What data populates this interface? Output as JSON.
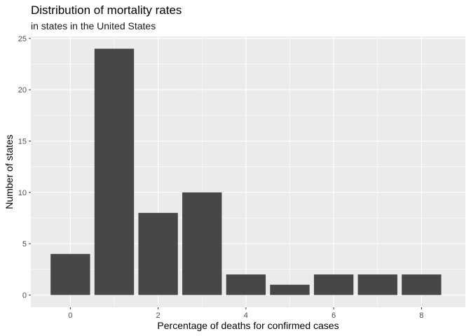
{
  "chart_data": {
    "type": "bar",
    "title": "Distribution of mortality rates",
    "subtitle": "in states in the United States",
    "xlabel": "Percentage of deaths for confirmed cases",
    "ylabel": "Number of states",
    "x": [
      0,
      1,
      2,
      3,
      4,
      5,
      6,
      7,
      8
    ],
    "values": [
      4,
      24,
      8,
      10,
      2,
      1,
      2,
      2,
      2
    ],
    "xlim": [
      -0.9,
      9.0
    ],
    "ylim": [
      -1.2,
      25.2
    ],
    "x_ticks": [
      0,
      2,
      4,
      6,
      8
    ],
    "y_ticks": [
      0,
      5,
      10,
      15,
      20,
      25
    ],
    "grid": true,
    "bar_color": "#474747",
    "panel_color": "#ebebeb",
    "grid_color": "#ffffff"
  }
}
